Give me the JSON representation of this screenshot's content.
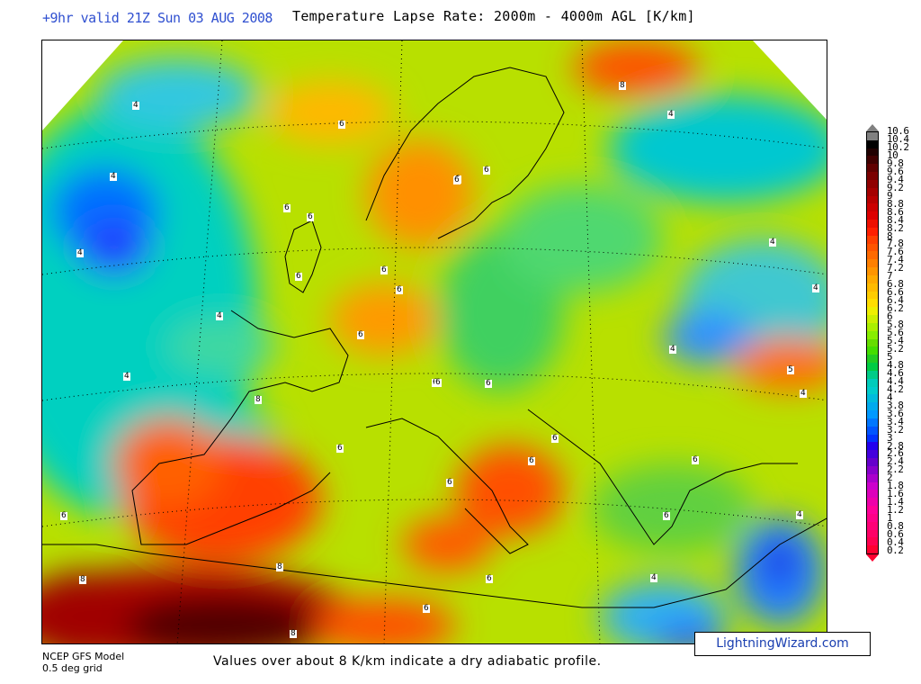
{
  "header": {
    "valid_time": "+9hr valid 21Z Sun 03 AUG 2008",
    "title": "Temperature Lapse Rate: 2000m - 4000m AGL  [K/km]"
  },
  "footer": {
    "model_line1": "NCEP GFS Model",
    "model_line2": "0.5 deg grid",
    "note": "Values over about 8 K/km indicate a dry adiabatic profile.",
    "brand": "LightningWizard.com"
  },
  "colorbar": {
    "labels": [
      "10.6",
      "10.4",
      "10.2",
      "10",
      "9.8",
      "9.6",
      "9.4",
      "9.2",
      "9",
      "8.8",
      "8.6",
      "8.4",
      "8.2",
      "8",
      "7.8",
      "7.6",
      "7.4",
      "7.2",
      "7",
      "6.8",
      "6.6",
      "6.4",
      "6.2",
      "6",
      "5.8",
      "5.6",
      "5.4",
      "5.2",
      "5",
      "4.8",
      "4.6",
      "4.4",
      "4.2",
      "4",
      "3.8",
      "3.6",
      "3.4",
      "3.2",
      "3",
      "2.8",
      "2.6",
      "2.4",
      "2.2",
      "2",
      "1.8",
      "1.6",
      "1.4",
      "1.2",
      "1",
      "0.8",
      "0.6",
      "0.4",
      "0.2"
    ],
    "colors": [
      "#808080",
      "#000000",
      "#200000",
      "#400000",
      "#600000",
      "#7a0000",
      "#900000",
      "#a50000",
      "#b80000",
      "#cc0000",
      "#dd0000",
      "#ee1000",
      "#ff2000",
      "#ff4000",
      "#ff5500",
      "#ff6a00",
      "#ff8000",
      "#ff9500",
      "#ffaa00",
      "#ffbb00",
      "#ffcc00",
      "#ffdd00",
      "#eeee00",
      "#ccee00",
      "#aaee00",
      "#88ee00",
      "#66dd00",
      "#44dd00",
      "#22cc22",
      "#00cc44",
      "#00cc88",
      "#00ccbb",
      "#00cccc",
      "#00bbdd",
      "#00aaee",
      "#0099ff",
      "#0077ff",
      "#0055ff",
      "#0033ff",
      "#2200ee",
      "#4400dd",
      "#6600cc",
      "#8800cc",
      "#aa00cc",
      "#cc00cc",
      "#dd00bb",
      "#ee00aa",
      "#ff0099",
      "#ff0088",
      "#ff0077",
      "#ff0066",
      "#ff0050",
      "#ff0030"
    ]
  },
  "map": {
    "contour_labels": [
      "4",
      "4",
      "4",
      "4",
      "4",
      "4",
      "4",
      "4",
      "4",
      "4",
      "4",
      "4",
      "6",
      "6",
      "6",
      "6",
      "6",
      "6",
      "6",
      "6",
      "6",
      "6",
      "6",
      "6",
      "6",
      "6",
      "6",
      "6",
      "6",
      "6",
      "6",
      "6",
      "6",
      "6",
      "8",
      "8",
      "8",
      "8",
      "8",
      "5"
    ]
  }
}
